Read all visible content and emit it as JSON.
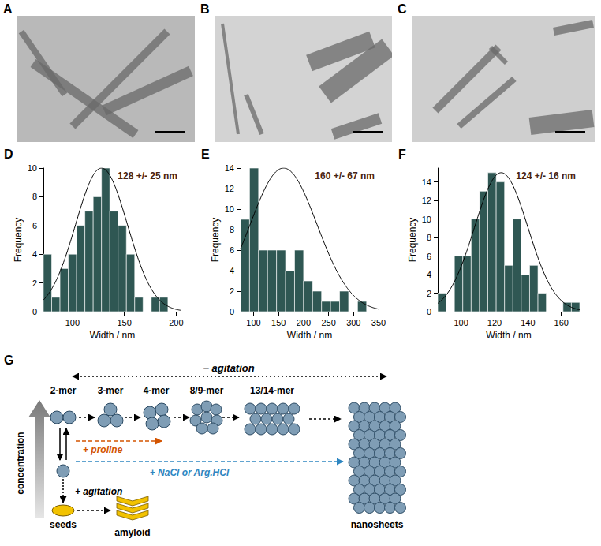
{
  "images": [
    {
      "panel": "A"
    },
    {
      "panel": "B"
    },
    {
      "panel": "C"
    }
  ],
  "chart_data": [
    {
      "type": "histogram",
      "panel": "D",
      "xlabel": "Width / nm",
      "ylabel": "Frequency",
      "annotation": "128 +/- 25 nm",
      "bins": [
        72,
        80,
        88,
        96,
        104,
        112,
        120,
        128,
        136,
        144,
        152,
        160,
        168,
        176,
        184,
        192
      ],
      "values": [
        4,
        1,
        3,
        4,
        6,
        7,
        8,
        10,
        7,
        6,
        4,
        1,
        0,
        1,
        1
      ],
      "color": "#2f5753",
      "fit": {
        "mean": 128,
        "sd": 25,
        "peak": 10,
        "color": "#000000"
      },
      "xlim": [
        72,
        205
      ],
      "xticks": [
        100,
        150,
        200
      ],
      "ylim": [
        0,
        10
      ],
      "yticks": [
        0,
        2,
        4,
        6,
        8,
        10
      ],
      "grid": false
    },
    {
      "type": "histogram",
      "panel": "E",
      "xlabel": "Width / nm",
      "ylabel": "Frequency",
      "annotation": "160 +/- 67 nm",
      "bins": [
        74,
        92,
        110,
        128,
        146,
        164,
        182,
        200,
        218,
        236,
        254,
        272,
        290,
        308,
        326
      ],
      "values": [
        9,
        14,
        6,
        6,
        6,
        4,
        6,
        3,
        2,
        1,
        1,
        2,
        0,
        1
      ],
      "color": "#2f5753",
      "fit": {
        "mean": 160,
        "sd": 67,
        "peak": 14,
        "color": "#000000"
      },
      "xlim": [
        74,
        350
      ],
      "xticks": [
        100,
        150,
        200,
        250,
        300,
        350
      ],
      "ylim": [
        0,
        14
      ],
      "yticks": [
        0,
        2,
        4,
        6,
        8,
        10,
        12,
        14
      ],
      "grid": false
    },
    {
      "type": "histogram",
      "panel": "F",
      "xlabel": "Width / nm",
      "ylabel": "Frequency",
      "annotation": "124 +/- 16 nm",
      "bins": [
        86,
        91,
        96,
        101,
        106,
        111,
        116,
        121,
        126,
        131,
        136,
        141,
        146,
        151,
        156,
        161,
        166,
        171
      ],
      "values": [
        2,
        0,
        6,
        6,
        10,
        13,
        15,
        14,
        5,
        10,
        4,
        5,
        2,
        0,
        0,
        1,
        1
      ],
      "color": "#2f5753",
      "fit": {
        "mean": 124,
        "sd": 16,
        "peak": 15,
        "color": "#000000"
      },
      "xlim": [
        86,
        171
      ],
      "xticks": [
        100,
        120,
        140,
        160
      ],
      "ylim": [
        0,
        15.5
      ],
      "yticks": [
        0,
        2,
        4,
        6,
        8,
        10,
        12,
        14
      ],
      "grid": false
    }
  ],
  "diagram": {
    "panel": "G",
    "top_label": "− agitation",
    "oligomers": [
      "2-mer",
      "3-mer",
      "4-mer",
      "8/9-mer",
      "13/14-mer"
    ],
    "proline": "+ proline",
    "salt": "+ NaCl or Arg.HCl",
    "concentration": "concentration",
    "agitation": "+ agitation",
    "seeds": "seeds",
    "amyloid": "amyloid",
    "nanosheets": "nanosheets"
  }
}
